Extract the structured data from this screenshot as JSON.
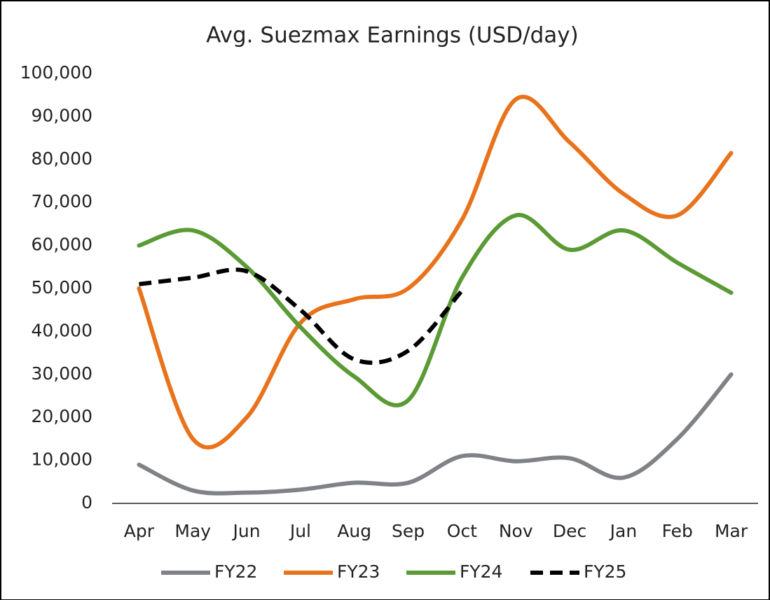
{
  "chart_data": {
    "type": "line",
    "title": "Avg. Suezmax Earnings (USD/day)",
    "categories": [
      "Apr",
      "May",
      "Jun",
      "Jul",
      "Aug",
      "Sep",
      "Oct",
      "Nov",
      "Dec",
      "Jan",
      "Feb",
      "Mar"
    ],
    "series": [
      {
        "name": "FY22",
        "color": "#7f8286",
        "values": [
          9000,
          3000,
          2500,
          3200,
          4800,
          4800,
          11000,
          9800,
          10500,
          6000,
          15000,
          30000
        ]
      },
      {
        "name": "FY23",
        "color": "#e8731c",
        "values": [
          50000,
          15000,
          20000,
          42000,
          47500,
          50000,
          66000,
          94000,
          84000,
          72000,
          67000,
          81500
        ]
      },
      {
        "name": "FY24",
        "color": "#5b9a34",
        "values": [
          60000,
          63500,
          55000,
          41000,
          29500,
          24000,
          52500,
          67000,
          59000,
          63500,
          56000,
          49000
        ]
      },
      {
        "name": "FY25",
        "color": "#000000",
        "dashed": true,
        "values": [
          51000,
          52500,
          54000,
          45000,
          33500,
          35500,
          49500,
          null,
          null,
          null,
          null,
          null
        ]
      }
    ],
    "ylim": [
      0,
      100000
    ],
    "yticks": [
      0,
      {
        "value": 10000,
        "label": "10,000"
      },
      {
        "value": 20000,
        "label": "20,000"
      },
      {
        "value": 30000,
        "label": "30,000"
      },
      {
        "value": 40000,
        "label": "40,000"
      },
      {
        "value": 50000,
        "label": "50,000"
      },
      {
        "value": 60000,
        "label": "60,000"
      },
      {
        "value": 70000,
        "label": "70,000"
      },
      {
        "value": 80000,
        "label": "80,000"
      },
      {
        "value": 90000,
        "label": "90,000"
      },
      {
        "value": 100000,
        "label": "100,000"
      }
    ],
    "grid": false,
    "legend": "bottom"
  }
}
